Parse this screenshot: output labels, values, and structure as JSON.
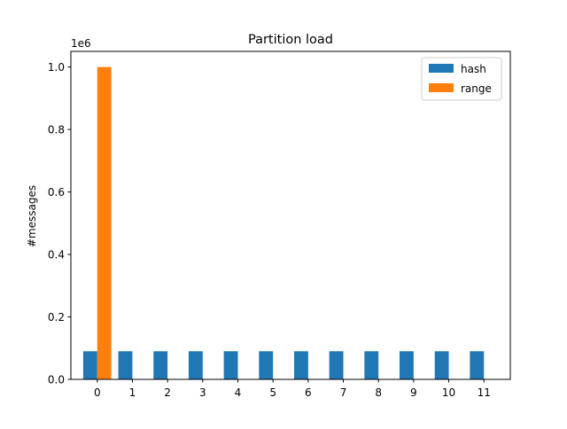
{
  "chart_data": {
    "type": "bar",
    "title": "Partition load",
    "xlabel": "",
    "ylabel": "#messages",
    "y_offset_label": "1e6",
    "categories": [
      "0",
      "1",
      "2",
      "3",
      "4",
      "5",
      "6",
      "7",
      "8",
      "9",
      "10",
      "11"
    ],
    "series": [
      {
        "name": "hash",
        "color": "#1f77b4",
        "values": [
          90000,
          90000,
          90000,
          90000,
          90000,
          90000,
          90000,
          90000,
          90000,
          90000,
          90000,
          90000
        ]
      },
      {
        "name": "range",
        "color": "#ff7f0e",
        "values": [
          1000000,
          0,
          0,
          0,
          0,
          0,
          0,
          0,
          0,
          0,
          0,
          0
        ]
      }
    ],
    "ylim": [
      0,
      1050000
    ],
    "y_ticks": [
      {
        "value": 0,
        "label": "0.0"
      },
      {
        "value": 200000,
        "label": "0.2"
      },
      {
        "value": 400000,
        "label": "0.4"
      },
      {
        "value": 600000,
        "label": "0.6"
      },
      {
        "value": 800000,
        "label": "0.8"
      },
      {
        "value": 1000000,
        "label": "1.0"
      }
    ],
    "legend_position": "top-right",
    "grid": false
  }
}
